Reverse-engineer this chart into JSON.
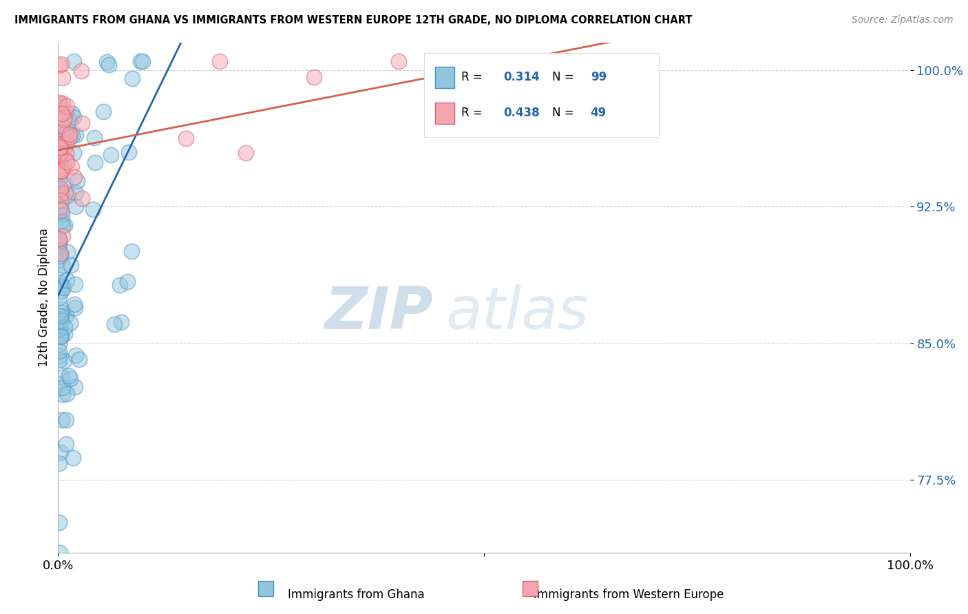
{
  "title": "IMMIGRANTS FROM GHANA VS IMMIGRANTS FROM WESTERN EUROPE 12TH GRADE, NO DIPLOMA CORRELATION CHART",
  "source": "Source: ZipAtlas.com",
  "ylabel": "12th Grade, No Diploma",
  "yticks": [
    0.775,
    0.85,
    0.925,
    1.0
  ],
  "ytick_labels": [
    "77.5%",
    "85.0%",
    "92.5%",
    "100.0%"
  ],
  "xlim": [
    0.0,
    1.0
  ],
  "ylim": [
    0.735,
    1.015
  ],
  "ghana_color": "#92c5de",
  "ghana_color_edge": "#4393c3",
  "western_color": "#f4a6b0",
  "western_color_edge": "#d6606d",
  "ghana_R": 0.314,
  "ghana_N": 99,
  "western_R": 0.438,
  "western_N": 49,
  "ghana_line_color": "#2166ac",
  "western_line_color": "#d6604d",
  "watermark_zip": "ZIP",
  "watermark_atlas": "atlas",
  "legend_ghana": "Immigrants from Ghana",
  "legend_western": "Immigrants from Western Europe",
  "ghana_seed": 42,
  "western_seed": 123
}
